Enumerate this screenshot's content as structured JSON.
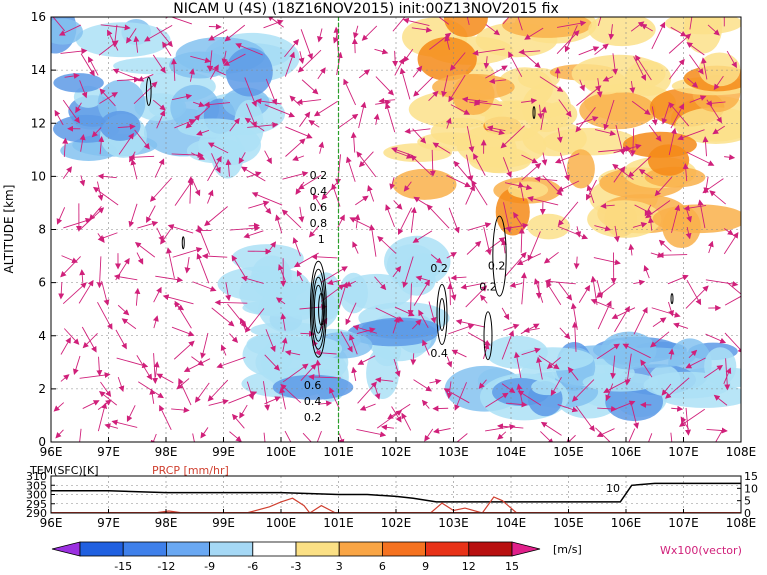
{
  "chart_data": [
    {
      "type": "heatmap",
      "title": "NICAM U (4S) (18Z16NOV2015) init:00Z13NOV2015 fix",
      "ylabel": "ALTITUDE [km]",
      "xlabel": "",
      "x_ticks": [
        "96E",
        "97E",
        "98E",
        "99E",
        "100E",
        "101E",
        "102E",
        "103E",
        "104E",
        "105E",
        "106E",
        "107E",
        "108E"
      ],
      "y_ticks": [
        "0",
        "2",
        "4",
        "6",
        "8",
        "10",
        "12",
        "14",
        "16"
      ],
      "xlim": [
        96,
        108
      ],
      "ylim": [
        0,
        16
      ],
      "grid": true,
      "marker_line_lon": 101,
      "shaded_regions": [
        {
          "name": "westerly-upper-east",
          "lon": [
            102.3,
            108
          ],
          "alt": [
            8,
            16
          ],
          "sign": "positive",
          "max": 12
        },
        {
          "name": "easterly-upper-west",
          "lon": [
            96,
            99.5
          ],
          "alt": [
            10,
            16
          ],
          "sign": "negative",
          "min": -10
        },
        {
          "name": "easterly-low-east",
          "lon": [
            103.5,
            108
          ],
          "alt": [
            1.5,
            3.5
          ],
          "sign": "negative",
          "min": -12
        },
        {
          "name": "easterly-low-central",
          "lon": [
            99.5,
            102.5
          ],
          "alt": [
            2,
            7
          ],
          "sign": "negative",
          "min": -6
        }
      ],
      "contour_labels": [
        {
          "text": "0.2",
          "lon": 100.65,
          "alt": 9.9
        },
        {
          "text": "0.4",
          "lon": 100.65,
          "alt": 9.3
        },
        {
          "text": "0.6",
          "lon": 100.65,
          "alt": 8.7
        },
        {
          "text": "0.8",
          "lon": 100.65,
          "alt": 8.1
        },
        {
          "text": "1",
          "lon": 100.7,
          "alt": 7.5
        },
        {
          "text": "0.6",
          "lon": 100.55,
          "alt": 2.0
        },
        {
          "text": "0.4",
          "lon": 100.55,
          "alt": 1.4
        },
        {
          "text": "0.2",
          "lon": 100.55,
          "alt": 0.8
        },
        {
          "text": "0.2",
          "lon": 102.75,
          "alt": 6.4
        },
        {
          "text": "0.4",
          "lon": 102.75,
          "alt": 3.2
        },
        {
          "text": "0.2",
          "lon": 103.75,
          "alt": 6.5
        },
        {
          "text": "0.2",
          "lon": 103.6,
          "alt": 5.7
        }
      ]
    },
    {
      "type": "line",
      "series": [
        {
          "name": "TEM(SFC)[K]",
          "color": "#000000",
          "x": [
            96,
            97,
            98,
            99,
            100,
            101,
            101.5,
            102,
            102.3,
            102.7,
            103,
            103.5,
            104,
            104.5,
            105,
            105.5,
            105.9,
            106.1,
            106.5,
            107,
            108
          ],
          "values": [
            302,
            302,
            301,
            301,
            301,
            300,
            300,
            299,
            298,
            296,
            296,
            296,
            296,
            296,
            296,
            296,
            296,
            305,
            306,
            306,
            306
          ]
        },
        {
          "name": "PRCP [mm/hr]",
          "color": "#d04030",
          "x": [
            96,
            97.8,
            98.05,
            98.3,
            98.6,
            99.4,
            99.8,
            100.0,
            100.2,
            100.4,
            100.5,
            100.7,
            100.95,
            101.2,
            102,
            102.6,
            102.8,
            103.0,
            103.2,
            103.5,
            103.7,
            103.85,
            104.1,
            104.4,
            108
          ],
          "values": [
            0,
            0,
            0.8,
            0,
            0,
            0,
            2.5,
            4.5,
            6,
            3,
            0,
            3,
            0,
            0,
            0,
            0,
            4,
            1,
            2,
            0,
            6.5,
            5,
            0,
            0,
            0
          ]
        }
      ],
      "ylabel_left": "TEM(SFC)[K]",
      "ylabel_right": "PRCP [mm/hr]",
      "y_ticks_left": [
        "290",
        "295",
        "300",
        "305",
        "310"
      ],
      "y_ticks_right": [
        "0",
        "5",
        "10",
        "15"
      ],
      "annotation": "10",
      "x_ticks": [
        "96E",
        "97E",
        "98E",
        "99E",
        "100E",
        "101E",
        "102E",
        "103E",
        "104E",
        "105E",
        "106E",
        "107E",
        "108E"
      ]
    }
  ],
  "colorbar": {
    "ticks": [
      "-15",
      "-12",
      "-9",
      "-6",
      "-3",
      "3",
      "6",
      "9",
      "12",
      "15"
    ],
    "unit": "[m/s]",
    "colors": [
      "#9b30e0",
      "#2060e0",
      "#3f80ea",
      "#6aa8f2",
      "#a5d8f5",
      "#ffffff",
      "#fbe085",
      "#f9a545",
      "#f57220",
      "#e83218",
      "#b81010",
      "#e0208a"
    ]
  },
  "vector_label": "Wx100(vector)",
  "colors": {
    "pos1": "#fce08a",
    "pos2": "#f9b04a",
    "pos3": "#f58a18",
    "neg1": "#ace0f6",
    "neg2": "#84c2f0",
    "neg3": "#5d9ae6",
    "vector": "#d0207a",
    "marker_line": "#2aa02a"
  }
}
